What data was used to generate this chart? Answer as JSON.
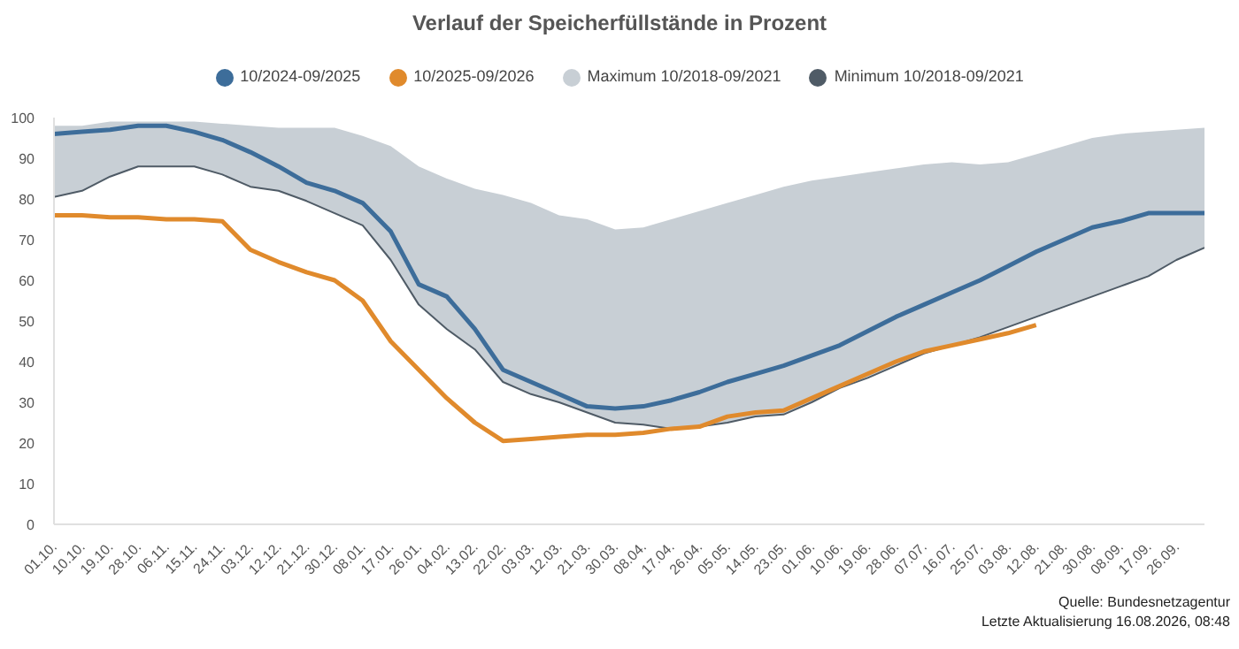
{
  "chart_data": {
    "type": "line",
    "title": "Verlauf der Speicherfüllstände in Prozent",
    "categories": [
      "01.10.",
      "10.10.",
      "19.10.",
      "28.10.",
      "06.11.",
      "15.11.",
      "24.11.",
      "03.12.",
      "12.12.",
      "21.12.",
      "30.12.",
      "08.01.",
      "17.01.",
      "26.01.",
      "04.02.",
      "13.02.",
      "22.02.",
      "03.03.",
      "12.03.",
      "21.03.",
      "30.03.",
      "08.04.",
      "17.04.",
      "26.04.",
      "05.05.",
      "14.05.",
      "23.05.",
      "01.06.",
      "10.06.",
      "19.06.",
      "28.06.",
      "07.07.",
      "16.07.",
      "25.07.",
      "03.08.",
      "12.08.",
      "21.08.",
      "30.08.",
      "08.09.",
      "17.09.",
      "26.09.",
      null
    ],
    "series": [
      {
        "name": "Maximum 10/2018-09/2021",
        "type": "area",
        "color": "#c8cfd5",
        "values": [
          98,
          98,
          99,
          99,
          99,
          99,
          98.5,
          98,
          97.5,
          97.5,
          97.5,
          95.5,
          93,
          88,
          85,
          82.5,
          81,
          79,
          76,
          75,
          72.5,
          73,
          75,
          77,
          79,
          81,
          83,
          84.5,
          85.5,
          86.5,
          87.5,
          88.5,
          89,
          88.5,
          89,
          91,
          93,
          95,
          96,
          96.5,
          97,
          97.5
        ]
      },
      {
        "name": "Minimum 10/2018-09/2021",
        "type": "line",
        "color": "#4f5b66",
        "values": [
          80.5,
          82,
          85.5,
          88,
          88,
          88,
          86,
          83,
          82,
          79.5,
          76.5,
          73.5,
          65,
          54,
          48,
          43,
          35,
          32,
          30,
          27.5,
          25,
          24.5,
          23.5,
          24,
          25,
          26.5,
          27,
          30,
          33.5,
          36,
          39,
          42,
          44,
          46,
          48.5,
          51,
          53.5,
          56,
          58.5,
          61,
          65,
          68
        ]
      },
      {
        "name": "10/2024-09/2025",
        "color": "#3d6d9a",
        "values": [
          96,
          96.5,
          97,
          98,
          98,
          96.5,
          94.5,
          91.5,
          88,
          84,
          82,
          79,
          72,
          59,
          56,
          48,
          38,
          35,
          32,
          29,
          28.5,
          29,
          30.5,
          32.5,
          35,
          37,
          39,
          41.5,
          44,
          47.5,
          51,
          54,
          57,
          60,
          63.5,
          67,
          70,
          73,
          74.5,
          76.5,
          76.5,
          76.5
        ]
      },
      {
        "name": "10/2025-09/2026",
        "color": "#e08a2c",
        "values": [
          76,
          76,
          75.5,
          75.5,
          75,
          75,
          74.5,
          67.5,
          64.5,
          62,
          60,
          55,
          45,
          38,
          31,
          25,
          20.5,
          21,
          21.5,
          22,
          22,
          22.5,
          23.5,
          24,
          26.5,
          27.5,
          28,
          31,
          34,
          37,
          40,
          42.5,
          44,
          45.5,
          47,
          49,
          null,
          null,
          null,
          null,
          null,
          null
        ]
      }
    ],
    "ylim": [
      0,
      100
    ],
    "yticks": [
      0,
      10,
      20,
      30,
      40,
      50,
      60,
      70,
      80,
      90,
      100
    ],
    "legend": "top",
    "line_style": "solid",
    "annotations": [
      "Quelle: Bundesnetzagentur",
      "Letzte Aktualisierung 16.08.2026, 08:48"
    ]
  }
}
